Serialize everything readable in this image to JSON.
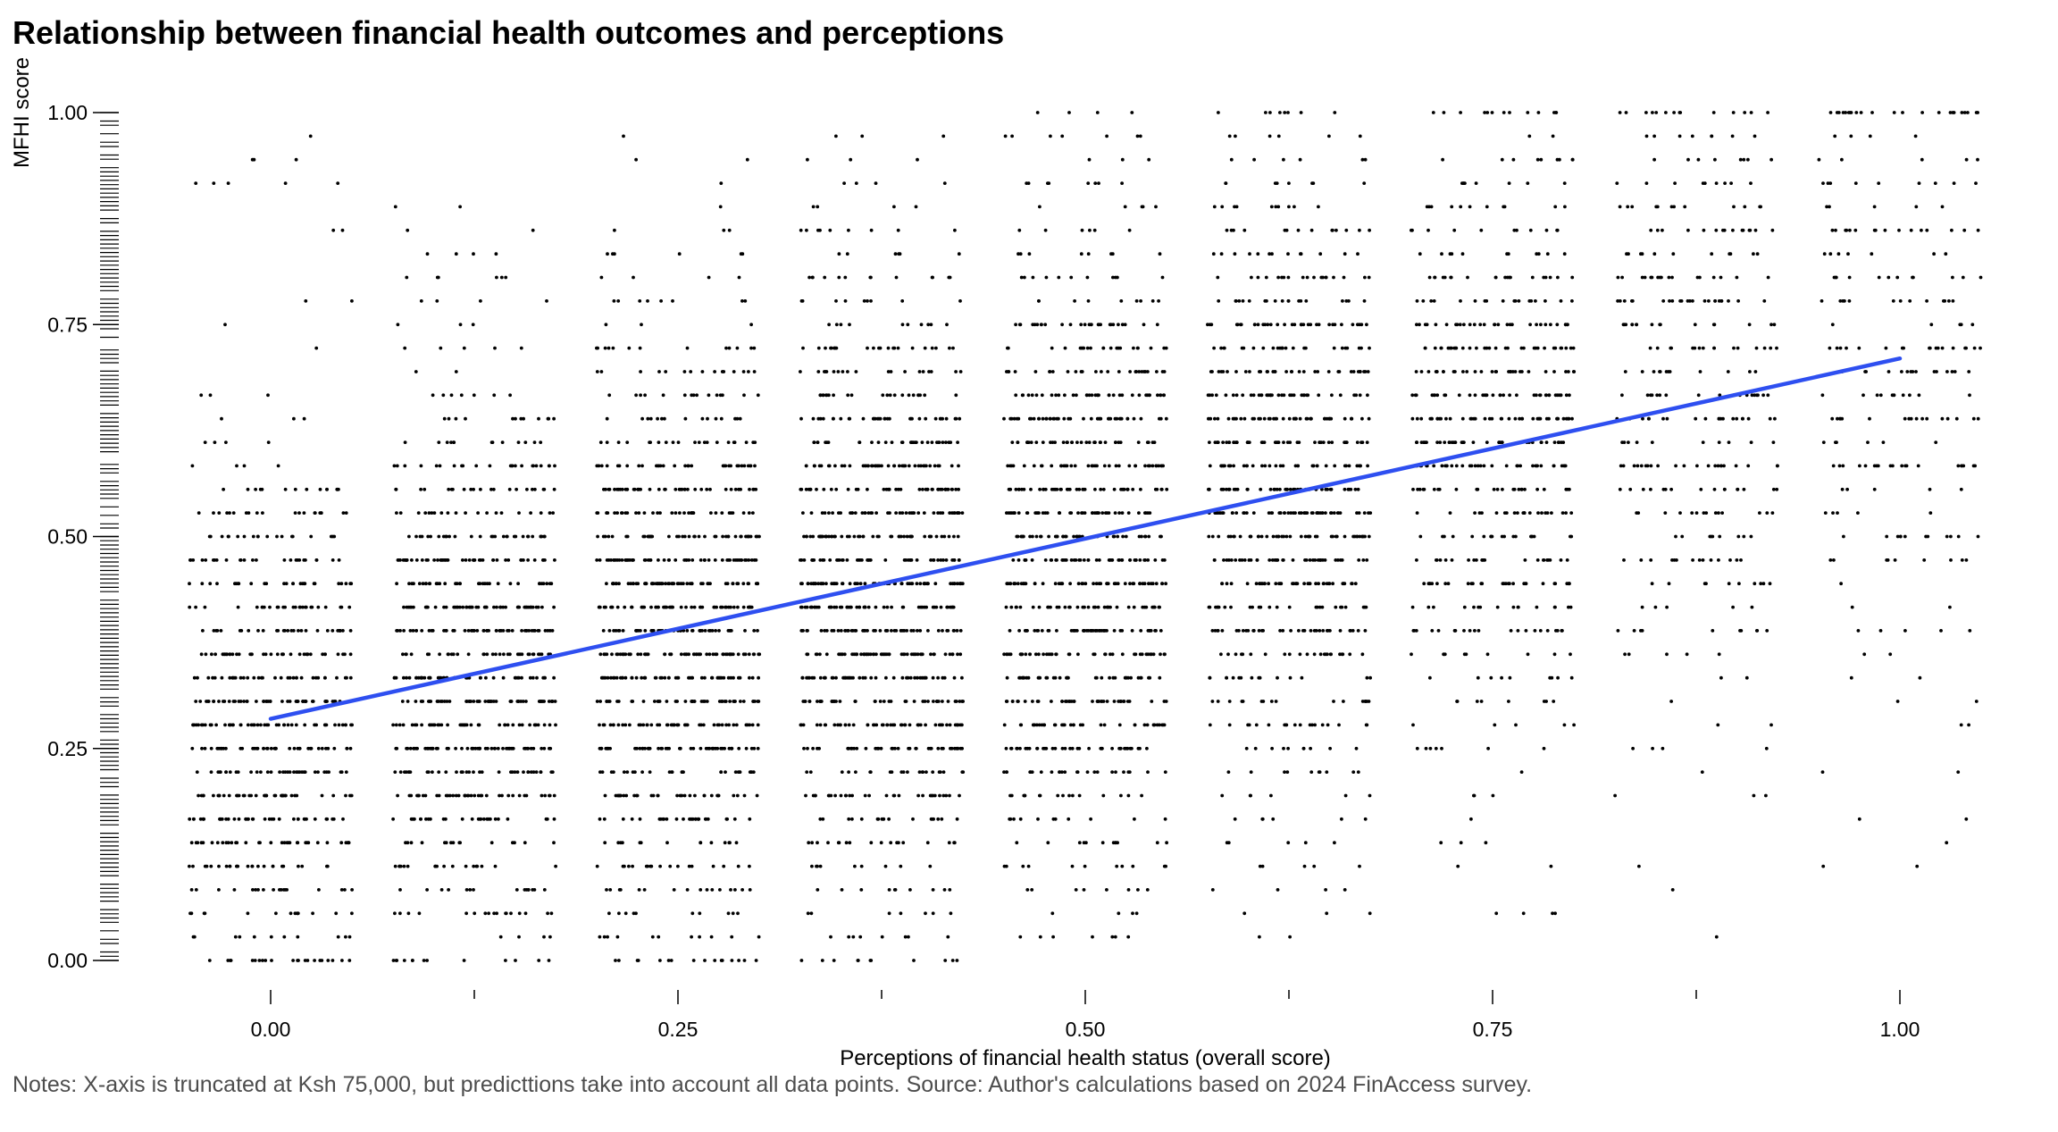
{
  "title": "Relationship between financial health outcomes and perceptions",
  "notes": "Notes: X-axis is truncated at Ksh 75,000, but predicttions take into account all data points. Source: Author's calculations based on 2024 FinAccess survey.",
  "chart_data": {
    "type": "scatter",
    "title": "Relationship between financial health outcomes and perceptions",
    "xlabel": "Perceptions of financial health status (overall score)",
    "ylabel": "MFHI score",
    "xlim": [
      -0.08,
      1.08
    ],
    "ylim": [
      0,
      1
    ],
    "x_ticks": [
      "0.00",
      "0.25",
      "0.50",
      "0.75",
      "1.00"
    ],
    "x_tick_values": [
      0,
      0.25,
      0.5,
      0.75,
      1.0
    ],
    "x_minor_tick_values": [
      0.125,
      0.375,
      0.625,
      0.875
    ],
    "y_ticks": [
      "0.00",
      "0.25",
      "0.50",
      "0.75",
      "1.00"
    ],
    "y_tick_values": [
      0,
      0.25,
      0.5,
      0.75,
      1.0
    ],
    "grid": false,
    "legend": "none",
    "point_color": "#000000",
    "fit_color": "#2e4ff0",
    "jitter_width": 0.05,
    "y_rug": true,
    "fit_line": {
      "x": [
        0,
        1
      ],
      "y": [
        0.285,
        0.71
      ]
    },
    "columns": [
      {
        "x": 0.0,
        "count": 640,
        "y_mean": 0.29,
        "y_sd": 0.14,
        "y_min": 0.0,
        "y_max": 0.97
      },
      {
        "x": 0.125,
        "count": 760,
        "y_mean": 0.34,
        "y_sd": 0.16,
        "y_min": 0.0,
        "y_max": 0.9
      },
      {
        "x": 0.25,
        "count": 920,
        "y_mean": 0.38,
        "y_sd": 0.17,
        "y_min": 0.0,
        "y_max": 1.0
      },
      {
        "x": 0.375,
        "count": 960,
        "y_mean": 0.44,
        "y_sd": 0.18,
        "y_min": 0.0,
        "y_max": 1.0
      },
      {
        "x": 0.5,
        "count": 900,
        "y_mean": 0.49,
        "y_sd": 0.19,
        "y_min": 0.03,
        "y_max": 1.0
      },
      {
        "x": 0.625,
        "count": 780,
        "y_mean": 0.56,
        "y_sd": 0.17,
        "y_min": 0.03,
        "y_max": 1.0
      },
      {
        "x": 0.75,
        "count": 560,
        "y_mean": 0.62,
        "y_sd": 0.18,
        "y_min": 0.03,
        "y_max": 1.0
      },
      {
        "x": 0.875,
        "count": 330,
        "y_mean": 0.67,
        "y_sd": 0.19,
        "y_min": 0.03,
        "y_max": 1.0
      },
      {
        "x": 1.0,
        "count": 240,
        "y_mean": 0.72,
        "y_sd": 0.2,
        "y_min": 0.07,
        "y_max": 1.0
      }
    ]
  }
}
